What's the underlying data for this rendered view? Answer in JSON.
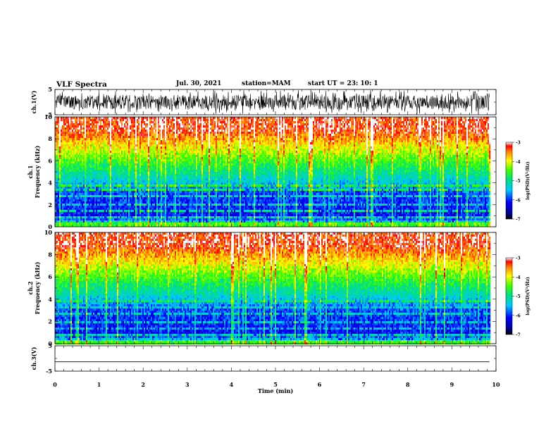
{
  "header": {
    "title": "VLF Spectra",
    "date": "Jul. 30, 2021",
    "station": "station=MAM",
    "start_ut": "start UT =  23: 10: 1"
  },
  "chart_data": [
    {
      "type": "line",
      "name": "ch1-waveform",
      "ylabel": "ch.1(V)",
      "ylim": [
        -5,
        5
      ],
      "yticks": [
        "5",
        "-5"
      ],
      "xlim": [
        0,
        10
      ]
    },
    {
      "type": "heatmap",
      "name": "ch1-spectrogram",
      "ylabel_line1": "ch.1",
      "ylabel_line2": "Frequency (kHz)",
      "ylim": [
        0,
        10
      ],
      "yticks": [
        "0",
        "2",
        "4",
        "6",
        "8",
        "10"
      ],
      "xlim": [
        0,
        9.85
      ],
      "colorbar": {
        "label": "log(PSD)(V²/Hz)",
        "range": [
          -7,
          -3
        ],
        "ticks": [
          "-3",
          "-4",
          "-5",
          "-6",
          "-7"
        ]
      }
    },
    {
      "type": "heatmap",
      "name": "ch2-spectrogram",
      "ylabel_line1": "ch.2",
      "ylabel_line2": "Frequency (kHz)",
      "ylim": [
        0,
        10
      ],
      "yticks": [
        "0",
        "2",
        "4",
        "6",
        "8",
        "10"
      ],
      "xlim": [
        0,
        9.85
      ],
      "colorbar": {
        "label": "log(PSD)(V²/Hz)",
        "range": [
          -7,
          -3
        ],
        "ticks": [
          "-3",
          "-4",
          "-5",
          "-6",
          "-7"
        ]
      }
    },
    {
      "type": "line",
      "name": "ch3-waveform",
      "ylabel": "ch.3(V)",
      "ylim": [
        -5,
        5
      ],
      "yticks": [
        "5",
        "-5"
      ],
      "xlim": [
        0,
        10
      ],
      "constant_value": -1.3
    }
  ],
  "x_axis": {
    "label": "Time (min)",
    "ticks": [
      "0",
      "1",
      "2",
      "3",
      "4",
      "5",
      "6",
      "7",
      "8",
      "9",
      "10"
    ]
  }
}
